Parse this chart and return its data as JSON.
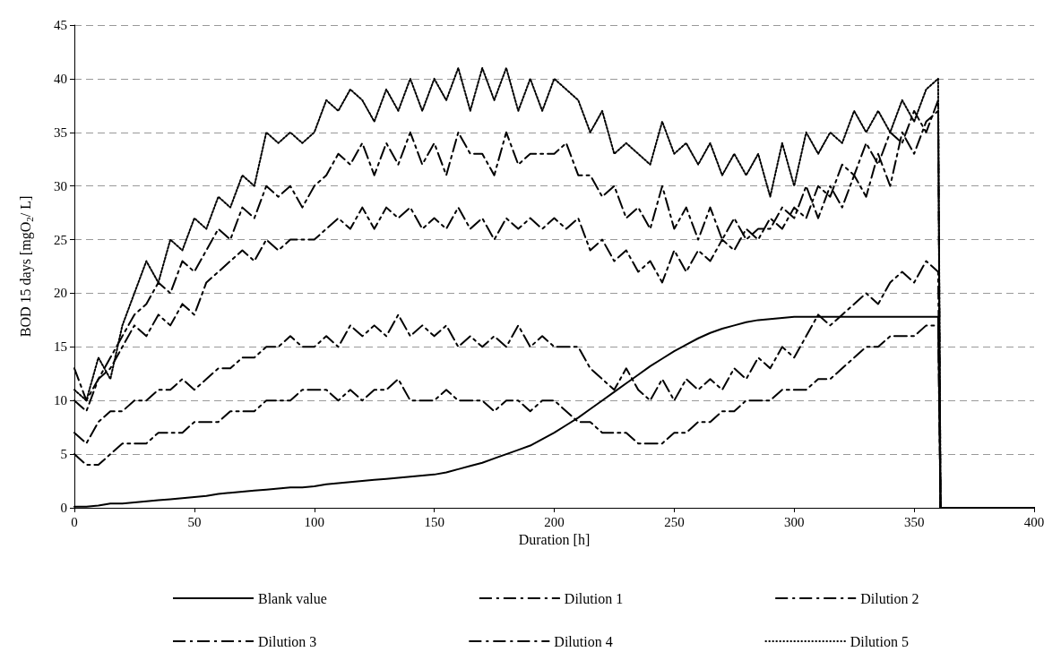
{
  "chart_data": {
    "type": "line",
    "xlabel": "Duration [h]",
    "ylabel": "BOD 15 days [mgO$_{2}$/ L]",
    "x": [
      0,
      5,
      10,
      15,
      20,
      25,
      30,
      35,
      40,
      45,
      50,
      55,
      60,
      65,
      70,
      75,
      80,
      85,
      90,
      95,
      100,
      105,
      110,
      115,
      120,
      125,
      130,
      135,
      140,
      145,
      150,
      155,
      160,
      165,
      170,
      175,
      180,
      185,
      190,
      195,
      200,
      205,
      210,
      215,
      220,
      225,
      230,
      235,
      240,
      245,
      250,
      255,
      260,
      265,
      270,
      275,
      280,
      285,
      290,
      295,
      300,
      305,
      310,
      315,
      320,
      325,
      330,
      335,
      340,
      345,
      350,
      355,
      360,
      361,
      400
    ],
    "xlim": [
      0,
      400
    ],
    "xticks": [
      0,
      50,
      100,
      150,
      200,
      250,
      300,
      350,
      400
    ],
    "ylim": [
      0,
      45
    ],
    "yticks": [
      0,
      5,
      10,
      15,
      20,
      25,
      30,
      35,
      40,
      45
    ],
    "grid": "y",
    "legend": "bottom",
    "marker": "none",
    "series": [
      {
        "name": "Blank value",
        "color": "#000000",
        "line_style": "solid",
        "values": [
          0.1,
          0.1,
          0.2,
          0.4,
          0.4,
          0.5,
          0.6,
          0.7,
          0.8,
          0.9,
          1.0,
          1.1,
          1.3,
          1.4,
          1.5,
          1.6,
          1.7,
          1.8,
          1.9,
          1.9,
          2.0,
          2.2,
          2.3,
          2.4,
          2.5,
          2.6,
          2.7,
          2.8,
          2.9,
          3.0,
          3.1,
          3.3,
          3.6,
          3.9,
          4.2,
          4.6,
          5.0,
          5.4,
          5.8,
          6.4,
          7.0,
          7.7,
          8.4,
          9.2,
          10.0,
          10.8,
          11.6,
          12.4,
          13.2,
          13.9,
          14.6,
          15.2,
          15.8,
          16.3,
          16.7,
          17.0,
          17.3,
          17.5,
          17.6,
          17.7,
          17.8,
          17.8,
          17.8,
          17.8,
          17.8,
          17.8,
          17.8,
          17.8,
          17.8,
          17.8,
          17.8,
          17.8,
          17.8,
          0,
          0
        ]
      },
      {
        "name": "Dilution 1",
        "color": "#000000",
        "line_style": "dashed",
        "values": [
          5,
          4,
          4,
          5,
          6,
          6,
          6,
          7,
          7,
          7,
          8,
          8,
          8,
          9,
          9,
          9,
          10,
          10,
          10,
          11,
          11,
          11,
          10,
          11,
          10,
          11,
          11,
          12,
          10,
          10,
          10,
          11,
          10,
          10,
          10,
          9,
          10,
          10,
          9,
          10,
          10,
          9,
          8,
          8,
          7,
          7,
          7,
          6,
          6,
          6,
          7,
          7,
          8,
          8,
          9,
          9,
          10,
          10,
          10,
          11,
          11,
          11,
          12,
          12,
          13,
          14,
          15,
          15,
          16,
          16,
          16,
          17,
          17,
          0,
          0
        ]
      },
      {
        "name": "Dilution 2",
        "color": "#000000",
        "line_style": "dashed",
        "values": [
          7,
          6,
          8,
          9,
          9,
          10,
          10,
          11,
          11,
          12,
          11,
          12,
          13,
          13,
          14,
          14,
          15,
          15,
          16,
          15,
          15,
          16,
          15,
          17,
          16,
          17,
          16,
          18,
          16,
          17,
          16,
          17,
          15,
          16,
          15,
          16,
          15,
          17,
          15,
          16,
          15,
          15,
          15,
          13,
          12,
          11,
          13,
          11,
          10,
          12,
          10,
          12,
          11,
          12,
          11,
          13,
          12,
          14,
          13,
          15,
          14,
          16,
          18,
          17,
          18,
          19,
          20,
          19,
          21,
          22,
          21,
          23,
          22,
          0,
          0
        ]
      },
      {
        "name": "Dilution 3",
        "color": "#000000",
        "line_style": "dashed",
        "values": [
          10,
          9,
          12,
          13,
          15,
          17,
          16,
          18,
          17,
          19,
          18,
          21,
          22,
          23,
          24,
          23,
          25,
          24,
          25,
          25,
          25,
          26,
          27,
          26,
          28,
          26,
          28,
          27,
          28,
          26,
          27,
          26,
          28,
          26,
          27,
          25,
          27,
          26,
          27,
          26,
          27,
          26,
          27,
          24,
          25,
          23,
          24,
          22,
          23,
          21,
          24,
          22,
          24,
          23,
          25,
          24,
          26,
          25,
          27,
          26,
          28,
          27,
          30,
          29,
          32,
          31,
          34,
          32,
          35,
          34,
          37,
          35,
          38,
          0,
          0
        ]
      },
      {
        "name": "Dilution 4",
        "color": "#000000",
        "line_style": "dashed",
        "values": [
          13,
          10,
          12,
          14,
          16,
          18,
          19,
          21,
          20,
          23,
          22,
          24,
          26,
          25,
          28,
          27,
          30,
          29,
          30,
          28,
          30,
          31,
          33,
          32,
          34,
          31,
          34,
          32,
          35,
          32,
          34,
          31,
          35,
          33,
          33,
          31,
          35,
          32,
          33,
          33,
          33,
          34,
          31,
          31,
          29,
          30,
          27,
          28,
          26,
          30,
          26,
          28,
          25,
          28,
          25,
          27,
          25,
          26,
          26,
          28,
          27,
          30,
          27,
          30,
          28,
          31,
          29,
          33,
          30,
          35,
          33,
          36,
          37,
          0,
          0
        ]
      },
      {
        "name": "Dilution 5",
        "color": "#000000",
        "line_style": "dotted",
        "values": [
          11,
          10,
          14,
          12,
          17,
          20,
          23,
          21,
          25,
          24,
          27,
          26,
          29,
          28,
          31,
          30,
          35,
          34,
          35,
          34,
          35,
          38,
          37,
          39,
          38,
          36,
          39,
          37,
          40,
          37,
          40,
          38,
          41,
          37,
          41,
          38,
          41,
          37,
          40,
          37,
          40,
          39,
          38,
          35,
          37,
          33,
          34,
          33,
          32,
          36,
          33,
          34,
          32,
          34,
          31,
          33,
          31,
          33,
          29,
          34,
          30,
          35,
          33,
          35,
          34,
          37,
          35,
          37,
          35,
          38,
          36,
          39,
          40,
          0,
          0
        ]
      }
    ]
  }
}
